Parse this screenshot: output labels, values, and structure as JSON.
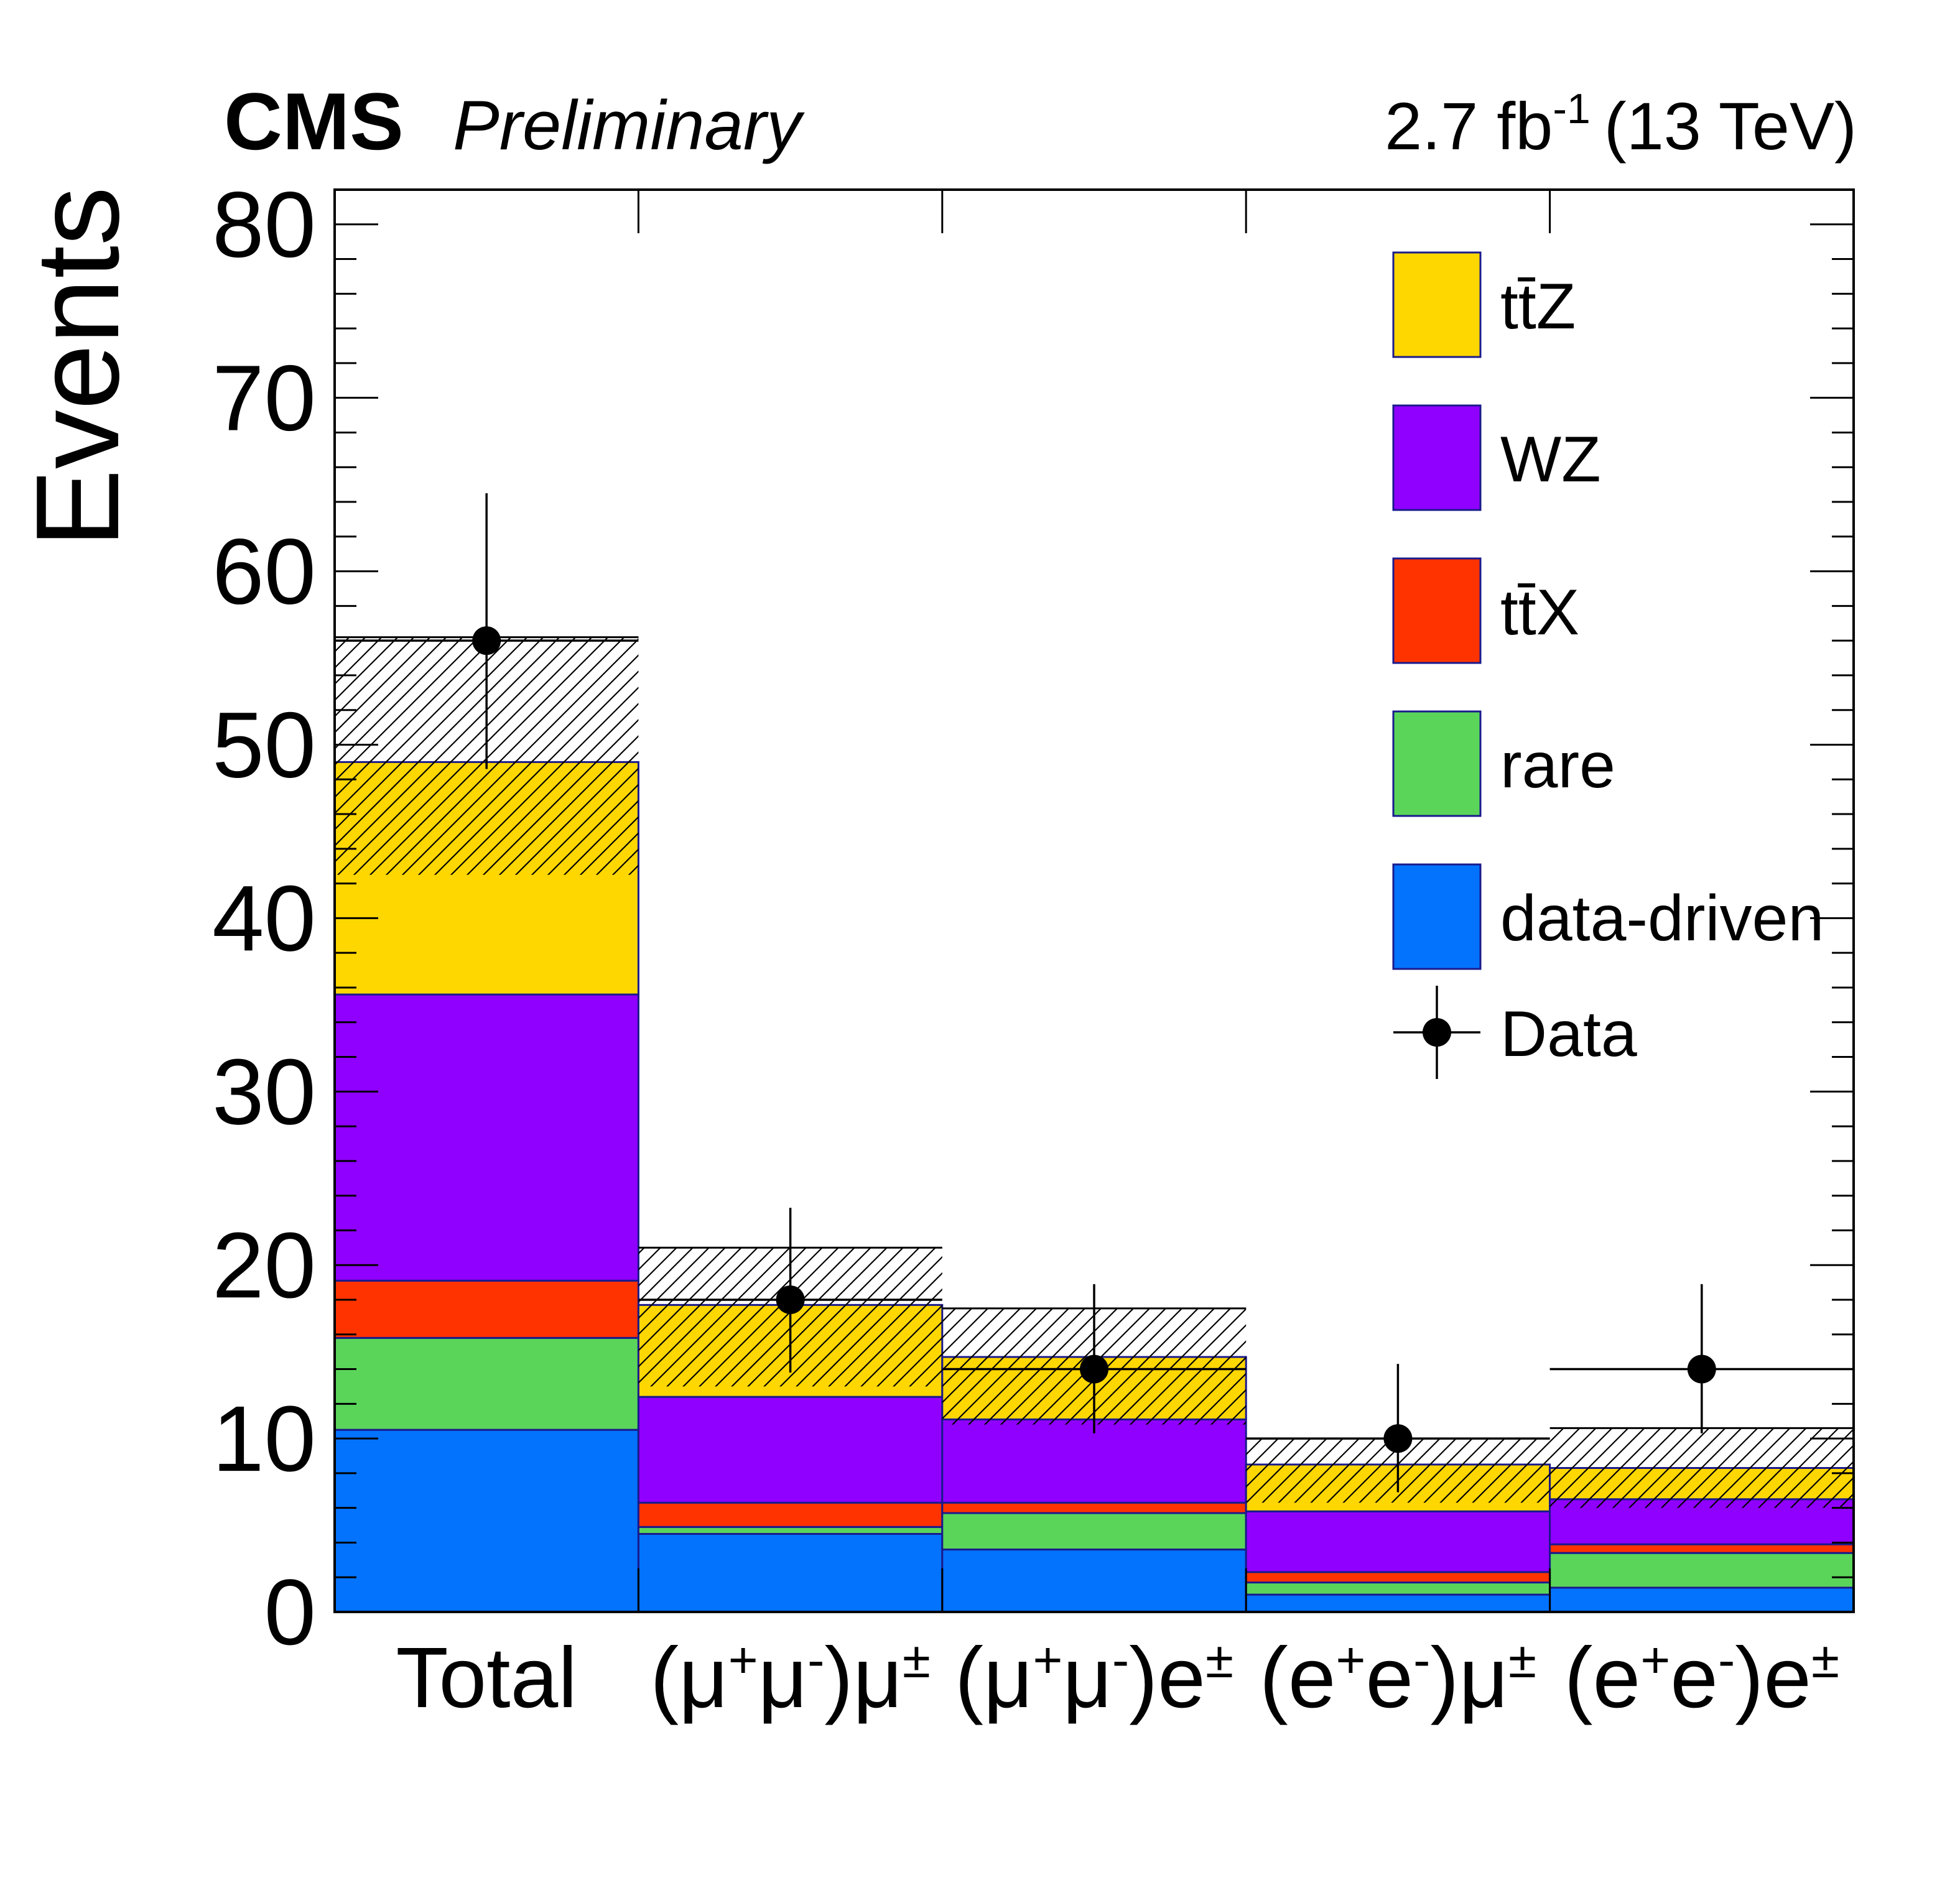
{
  "header": {
    "experiment": "CMS",
    "status": "Preliminary",
    "lumi": "2.7 fb",
    "lumi_exp": "-1",
    "energy": "(13 TeV)"
  },
  "chart_data": {
    "type": "bar",
    "stacked": true,
    "ylabel": "Events",
    "ylim": [
      0,
      82
    ],
    "yticks": [
      0,
      10,
      20,
      30,
      40,
      50,
      60,
      70,
      80
    ],
    "categories": [
      {
        "id": "total",
        "parts": [
          {
            "t": "Total",
            "s": ""
          }
        ]
      },
      {
        "id": "mmm",
        "parts": [
          {
            "t": "(μ",
            "s": ""
          },
          {
            "t": "",
            "s": "+"
          },
          {
            "t": "μ",
            "s": ""
          },
          {
            "t": "",
            "s": "-"
          },
          {
            "t": ")μ",
            "s": ""
          },
          {
            "t": "",
            "s": "±"
          }
        ]
      },
      {
        "id": "mme",
        "parts": [
          {
            "t": "(μ",
            "s": ""
          },
          {
            "t": "",
            "s": "+"
          },
          {
            "t": "μ",
            "s": ""
          },
          {
            "t": "",
            "s": "-"
          },
          {
            "t": ")e",
            "s": ""
          },
          {
            "t": "",
            "s": "±"
          }
        ]
      },
      {
        "id": "eem",
        "parts": [
          {
            "t": "(e",
            "s": ""
          },
          {
            "t": "",
            "s": "+"
          },
          {
            "t": "e",
            "s": ""
          },
          {
            "t": "",
            "s": "-"
          },
          {
            "t": ")μ",
            "s": ""
          },
          {
            "t": "",
            "s": "±"
          }
        ]
      },
      {
        "id": "eee",
        "parts": [
          {
            "t": "(e",
            "s": ""
          },
          {
            "t": "",
            "s": "+"
          },
          {
            "t": "e",
            "s": ""
          },
          {
            "t": "",
            "s": "-"
          },
          {
            "t": ")e",
            "s": ""
          },
          {
            "t": "",
            "s": "±"
          }
        ]
      }
    ],
    "series": [
      {
        "name": "data-driven",
        "color": "#0373fe",
        "values": [
          10.5,
          4.5,
          3.6,
          1.0,
          1.4
        ]
      },
      {
        "name": "rare",
        "color": "#5ad55a",
        "values": [
          5.3,
          0.4,
          2.1,
          0.7,
          2.0
        ]
      },
      {
        "name": "tt̄X",
        "color": "#ff3300",
        "values": [
          3.3,
          1.4,
          0.6,
          0.6,
          0.5
        ]
      },
      {
        "name": "WZ",
        "color": "#9000ff",
        "values": [
          16.5,
          6.1,
          4.8,
          3.5,
          2.6
        ]
      },
      {
        "name": "tt̄Z",
        "color": "#ffd700",
        "values": [
          13.4,
          5.3,
          3.6,
          2.7,
          1.8
        ]
      }
    ],
    "uncertainty": {
      "low": [
        42.5,
        13.0,
        10.8,
        6.3,
        6.0
      ],
      "high": [
        56.2,
        21.0,
        17.5,
        10.0,
        10.6
      ]
    },
    "data": {
      "name": "Data",
      "values": [
        56,
        18,
        14,
        10,
        14
      ],
      "err_low": [
        7.4,
        4.2,
        3.7,
        3.1,
        3.7
      ],
      "err_high": [
        8.5,
        5.3,
        4.9,
        4.3,
        4.9
      ]
    },
    "legend": {
      "position": "top-right",
      "entries": [
        {
          "label": "tt̄Z",
          "kind": "box",
          "color": "#ffd700"
        },
        {
          "label": "WZ",
          "kind": "box",
          "color": "#9000ff"
        },
        {
          "label": "tt̄X",
          "kind": "box",
          "color": "#ff3300"
        },
        {
          "label": "rare",
          "kind": "box",
          "color": "#5ad55a"
        },
        {
          "label": "data-driven",
          "kind": "box",
          "color": "#0373fe"
        },
        {
          "label": "Data",
          "kind": "marker",
          "color": "#000000"
        }
      ]
    }
  }
}
